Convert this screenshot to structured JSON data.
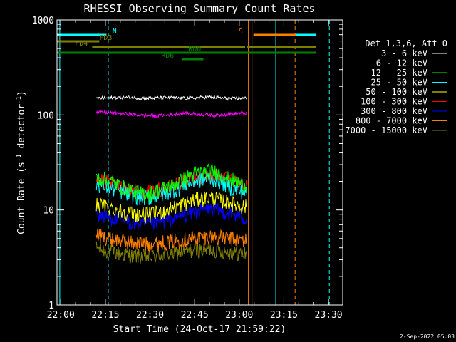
{
  "chart_data": {
    "type": "line",
    "title": "RHESSI Observing Summary Count Rates",
    "xlabel": "Start Time (24-Oct-17 21:59:22)",
    "ylabel_main": "Count Rate (s",
    "ylabel_sup1": "-1",
    "ylabel_mid": " detector",
    "ylabel_sup2": "-1",
    "ylabel_end": ")",
    "footer_date": "2-Sep-2022 05:03",
    "yscale": "log",
    "ylim": [
      1,
      1000
    ],
    "xlim_minutes": [
      -0.63,
      95.4
    ],
    "x_tick_labels": [
      "22:00",
      "22:15",
      "22:30",
      "22:45",
      "23:00",
      "23:15",
      "23:30"
    ],
    "x_tick_minutes": [
      0.63,
      15.63,
      30.63,
      45.63,
      60.63,
      75.63,
      90.63
    ],
    "y_tick_labels": [
      "1",
      "10",
      "100",
      "1000"
    ],
    "y_tick_values": [
      1,
      10,
      100,
      1000
    ],
    "legend": {
      "title": "Det 1,3,6, Att 0",
      "position": "right",
      "entries": [
        {
          "label": "3 - 6 keV",
          "color": "#000000"
        },
        {
          "label": "6 - 12 keV",
          "color": "#ff00ff"
        },
        {
          "label": "12 - 25 keV",
          "color": "#00ff00"
        },
        {
          "label": "25 - 50 keV",
          "color": "#00ffff"
        },
        {
          "label": "50 - 100 keV",
          "color": "#ffff00"
        },
        {
          "label": "100 - 300 keV",
          "color": "#ff0000"
        },
        {
          "label": "300 - 800 keV",
          "color": "#0000ff"
        },
        {
          "label": "800 - 7000 keV",
          "color": "#ff8000"
        },
        {
          "label": "7000 - 15000 keV",
          "color": "#808000"
        }
      ]
    },
    "series": [
      {
        "name": "3 - 6 keV",
        "color": "#000000",
        "x_start": 12.6,
        "x_end": 63.2,
        "y": [
          150,
          150,
          152,
          153,
          153,
          152,
          150,
          150,
          151,
          152,
          152,
          150,
          150,
          151,
          153,
          154,
          153,
          150,
          149,
          150,
          150
        ]
      },
      {
        "name": "6 - 12 keV",
        "color": "#ff00ff",
        "x_start": 12.6,
        "x_end": 63.2,
        "y": [
          107,
          106,
          105,
          104,
          103,
          101,
          99,
          98,
          98,
          99,
          101,
          103,
          104,
          103,
          101,
          100,
          99,
          101,
          103,
          104,
          104
        ]
      },
      {
        "name": "12 - 25 keV",
        "color": "#00ff00",
        "x_start": 12.6,
        "x_end": 63.2,
        "y": [
          22,
          21,
          20,
          18,
          17,
          16,
          15,
          15,
          16,
          17,
          18,
          20,
          22,
          24,
          25,
          26,
          25,
          23,
          21,
          19,
          18
        ]
      },
      {
        "name": "25 - 50 keV",
        "color": "#00ffff",
        "x_start": 12.6,
        "x_end": 63.2,
        "y": [
          19,
          18,
          17,
          16,
          15,
          14,
          13.5,
          13.5,
          14,
          15,
          16,
          17,
          19,
          20,
          21,
          21.5,
          21,
          19,
          17,
          16,
          15
        ]
      },
      {
        "name": "50 - 100 keV",
        "color": "#ffff00",
        "x_start": 12.6,
        "x_end": 63.2,
        "y": [
          11.5,
          11,
          10.5,
          10,
          9.5,
          9.2,
          9,
          9,
          9.3,
          9.8,
          10.5,
          11.2,
          12,
          12.8,
          13.3,
          13.5,
          13.2,
          12.5,
          11.8,
          11.2,
          10.8
        ]
      },
      {
        "name": "100 - 300 keV",
        "color": "#ff0000",
        "x_start": 12.6,
        "x_end": 63.2,
        "y": [
          21,
          20,
          19,
          18,
          17,
          16,
          15.5,
          15.5,
          16,
          17,
          18,
          19,
          20.5,
          22,
          23,
          23.5,
          23,
          21.5,
          20,
          18.5,
          17.5
        ]
      },
      {
        "name": "300 - 800 keV",
        "color": "#0000ff",
        "x_start": 12.6,
        "x_end": 63.2,
        "y": [
          9,
          8.6,
          8.3,
          8,
          7.6,
          7.3,
          7.1,
          7.1,
          7.3,
          7.7,
          8.1,
          8.6,
          9.1,
          9.6,
          10,
          10.2,
          10,
          9.5,
          9,
          8.5,
          8.2
        ]
      },
      {
        "name": "800 - 7000 keV",
        "color": "#ff8000",
        "x_start": 12.6,
        "x_end": 63.2,
        "y": [
          5.5,
          5.2,
          5,
          4.8,
          4.7,
          4.5,
          4.5,
          4.4,
          4.5,
          4.6,
          4.7,
          4.9,
          5,
          5.1,
          5.2,
          5.3,
          5.2,
          5.1,
          5,
          4.9,
          4.8
        ]
      },
      {
        "name": "7000 - 15000 keV",
        "color": "#808000",
        "x_start": 12.6,
        "x_end": 63.2,
        "y": [
          4,
          3.8,
          3.7,
          3.5,
          3.4,
          3.3,
          3.3,
          3.2,
          3.3,
          3.4,
          3.5,
          3.6,
          3.7,
          3.8,
          3.8,
          3.9,
          3.8,
          3.7,
          3.6,
          3.5,
          3.5
        ]
      }
    ],
    "vertical_lines": [
      {
        "minute": 0.3,
        "color": "#00ffff",
        "style": "solid"
      },
      {
        "minute": 16.6,
        "color": "#00ffff",
        "style": "dashed"
      },
      {
        "minute": 63.7,
        "color": "#ff8000",
        "style": "solid"
      },
      {
        "minute": 64.9,
        "color": "#ff8000",
        "style": "solid"
      },
      {
        "minute": 72.9,
        "color": "#00ffff",
        "style": "solid"
      },
      {
        "minute": 79.4,
        "color": "#ff8000",
        "style": "dashed"
      },
      {
        "minute": 90.9,
        "color": "#00ffff",
        "style": "dashed"
      }
    ],
    "flag_bars": [
      {
        "label": "N",
        "label_minute": 18.0,
        "label_y": 0,
        "color": "#00ffff",
        "segments": [
          [
            -0.6,
            16.0
          ],
          [
            73.6,
            86.4
          ]
        ],
        "y": 0
      },
      {
        "label": "S",
        "label_minute": 60.4,
        "label_y": 0,
        "color": "#ff8000",
        "segments": [
          [
            65.4,
            79.7
          ]
        ],
        "y": 0
      },
      {
        "label": "FD3",
        "label_minute": 13.6,
        "label_y": 1,
        "color": "#808000",
        "segments": [
          [
            -0.6,
            13.6
          ]
        ],
        "y": 1
      },
      {
        "label": "FD4",
        "label_minute": 5.4,
        "label_y": 2,
        "color": "#808000",
        "segments": [
          [
            11.2,
            62.6
          ],
          [
            63.2,
            86.4
          ]
        ],
        "y": 2
      },
      {
        "label": "RD0",
        "label_minute": 43.5,
        "label_y": 3,
        "color": "#008000",
        "segments": [
          [
            -0.6,
            86.4
          ]
        ],
        "y": 3
      },
      {
        "label": "RD6",
        "label_minute": 34.4,
        "label_y": 4,
        "color": "#008000",
        "segments": [
          [
            41.4,
            48.6
          ]
        ],
        "y": 4
      }
    ]
  }
}
